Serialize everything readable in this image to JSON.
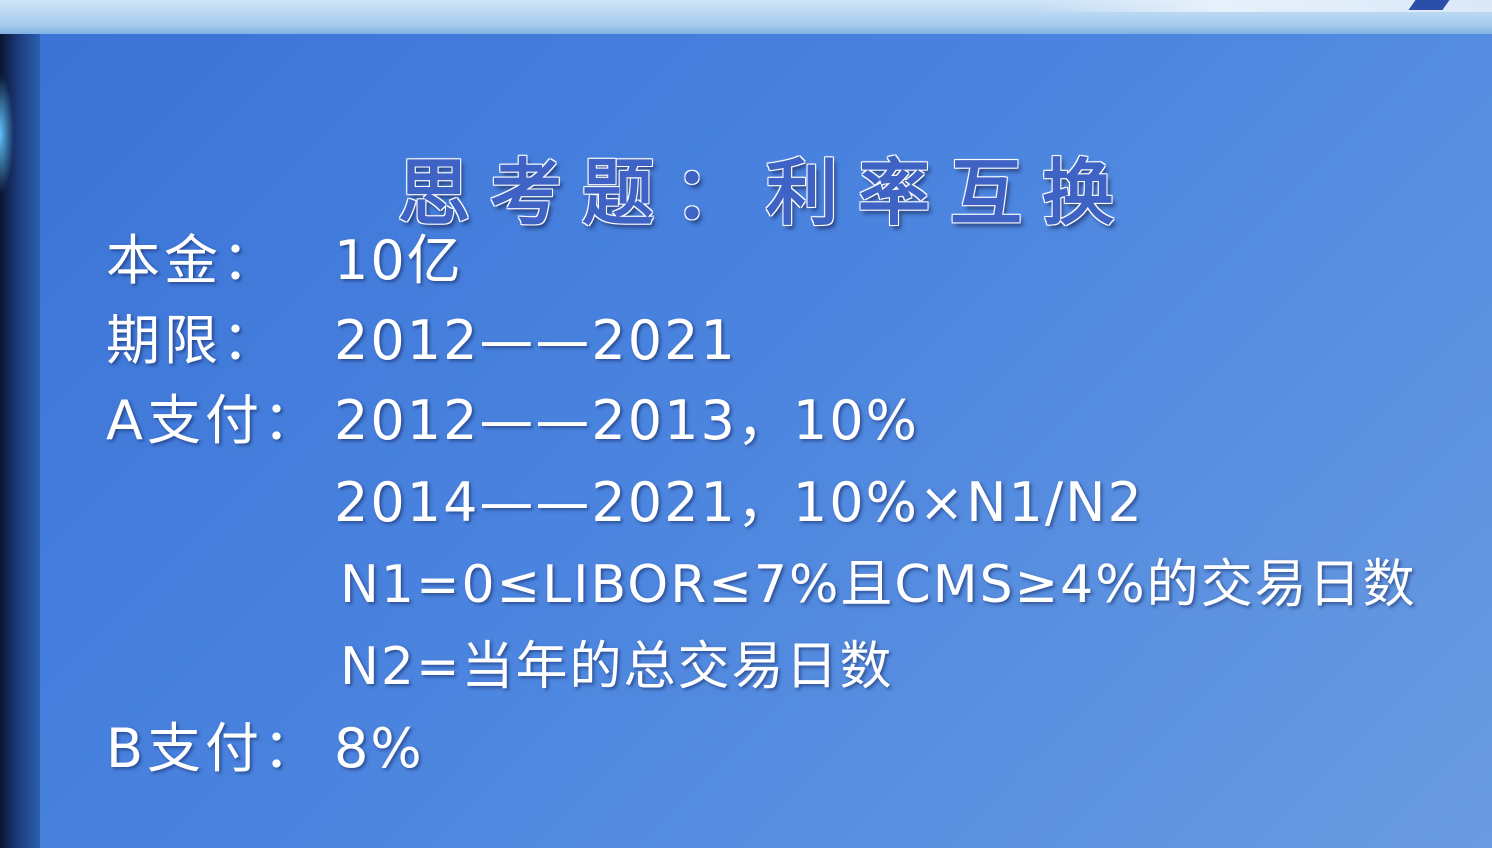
{
  "title": "思考题：利率互换",
  "rows": [
    {
      "label": "本金：",
      "value": "10亿"
    },
    {
      "label": "期限：",
      "value": "2012——2021"
    },
    {
      "label": "A支付：",
      "value": "2012——2013，10%"
    },
    {
      "label": "",
      "value": "2014——2021，10%×N1/N2"
    },
    {
      "label": "",
      "value": "N1=0≤LIBOR≤7%且CMS≥4%的交易日数"
    },
    {
      "label": "",
      "value": "N2=当年的总交易日数"
    },
    {
      "label": "B支付：",
      "value": "8%"
    }
  ]
}
